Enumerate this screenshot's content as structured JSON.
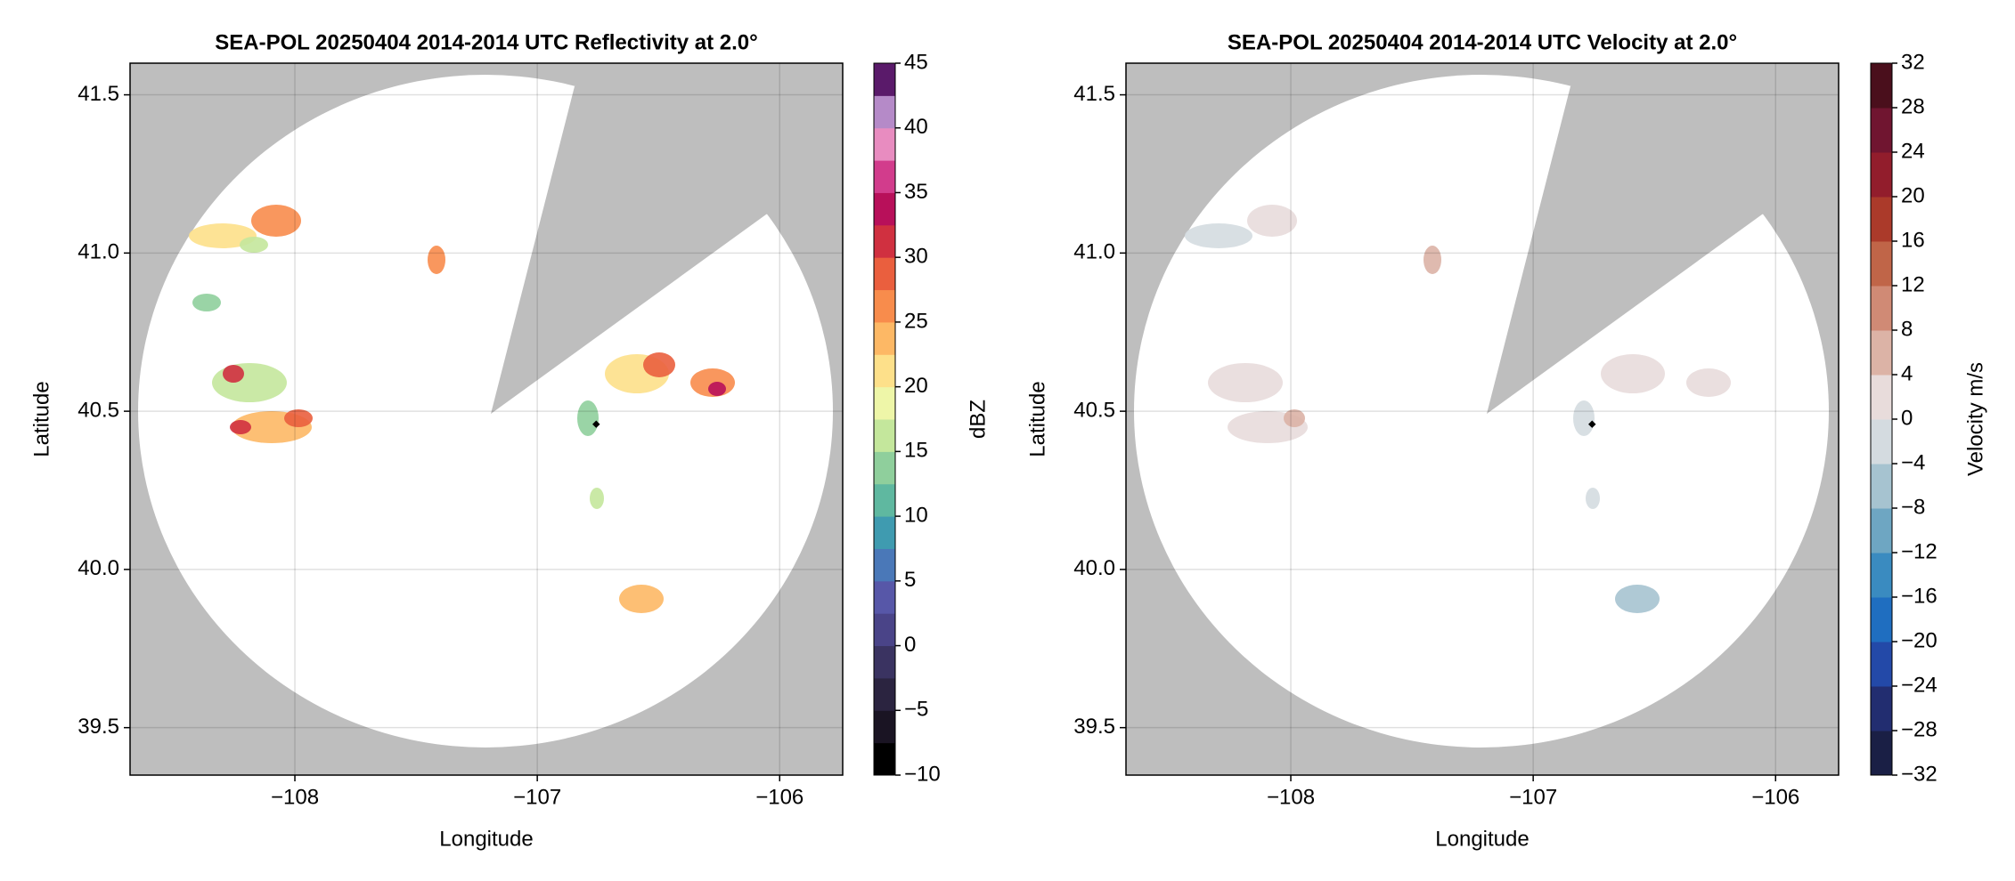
{
  "chart_data": [
    {
      "type": "radar",
      "title": "SEA-POL 20250404 2014-2014 UTC Reflectivity at 2.0°",
      "xlabel": "Longitude",
      "ylabel": "Latitude",
      "xlim": [
        -108.68,
        -105.74
      ],
      "ylim": [
        39.35,
        41.6
      ],
      "xticks": [
        {
          "value": -108,
          "label": "−108"
        },
        {
          "value": -107,
          "label": "−107"
        },
        {
          "value": -106,
          "label": "−106"
        }
      ],
      "yticks": [
        39.5,
        {
          "value": 40,
          "label": "40.0"
        },
        40.5,
        {
          "value": 41,
          "label": "41.0"
        },
        41.5
      ],
      "grid": true,
      "background": "#bebebe",
      "site": {
        "x": -106.757,
        "y": 40.459
      },
      "colorbar": {
        "label": "dBZ",
        "lim": [
          -10,
          45
        ],
        "ticks": [
          {
            "value": -10,
            "label": "−10"
          },
          {
            "value": -5,
            "label": "−5"
          },
          0,
          5,
          10,
          15,
          20,
          25,
          30,
          35,
          40,
          45
        ],
        "colors": [
          "#000000",
          "#1a1423",
          "#2b2440",
          "#3a3361",
          "#4a4488",
          "#5757a8",
          "#4a78b8",
          "#3f9bb0",
          "#5fb8a0",
          "#8fcf9c",
          "#c4e79c",
          "#eef6a8",
          "#fde08a",
          "#fdb865",
          "#f88c4c",
          "#ea5f3e",
          "#d03040",
          "#b8105a",
          "#d23c8c",
          "#e88cc0",
          "#b58ac8",
          "#5a1a6a"
        ]
      }
    },
    {
      "type": "radar",
      "title": "SEA-POL 20250404 2014-2014 UTC Velocity at 2.0°",
      "xlabel": "Longitude",
      "ylabel": "Latitude",
      "xlim": [
        -108.68,
        -105.74
      ],
      "ylim": [
        39.35,
        41.6
      ],
      "xticks": [
        {
          "value": -108,
          "label": "−108"
        },
        {
          "value": -107,
          "label": "−107"
        },
        {
          "value": -106,
          "label": "−106"
        }
      ],
      "yticks": [
        39.5,
        {
          "value": 40,
          "label": "40.0"
        },
        40.5,
        {
          "value": 41,
          "label": "41.0"
        },
        41.5
      ],
      "grid": true,
      "background": "#bebebe",
      "site": {
        "x": -106.757,
        "y": 40.459
      },
      "colorbar": {
        "label": "Velocity m/s",
        "lim": [
          -32,
          32
        ],
        "ticks": [
          {
            "value": -32,
            "label": "−32"
          },
          {
            "value": -28,
            "label": "−28"
          },
          {
            "value": -24,
            "label": "−24"
          },
          {
            "value": -20,
            "label": "−20"
          },
          {
            "value": -16,
            "label": "−16"
          },
          {
            "value": -12,
            "label": "−12"
          },
          {
            "value": -8,
            "label": "−8"
          },
          {
            "value": -4,
            "label": "−4"
          },
          0,
          4,
          8,
          12,
          16,
          20,
          24,
          28,
          32
        ],
        "colors": [
          "#1a1f45",
          "#222d70",
          "#2349a8",
          "#1f6ec0",
          "#3a8bc0",
          "#6ea6c2",
          "#a6c3d0",
          "#d4dbe0",
          "#e8dcdb",
          "#dcb3a6",
          "#d08a75",
          "#c06548",
          "#ab3a2a",
          "#921d2c",
          "#701530",
          "#4a0f1c"
        ]
      }
    }
  ]
}
